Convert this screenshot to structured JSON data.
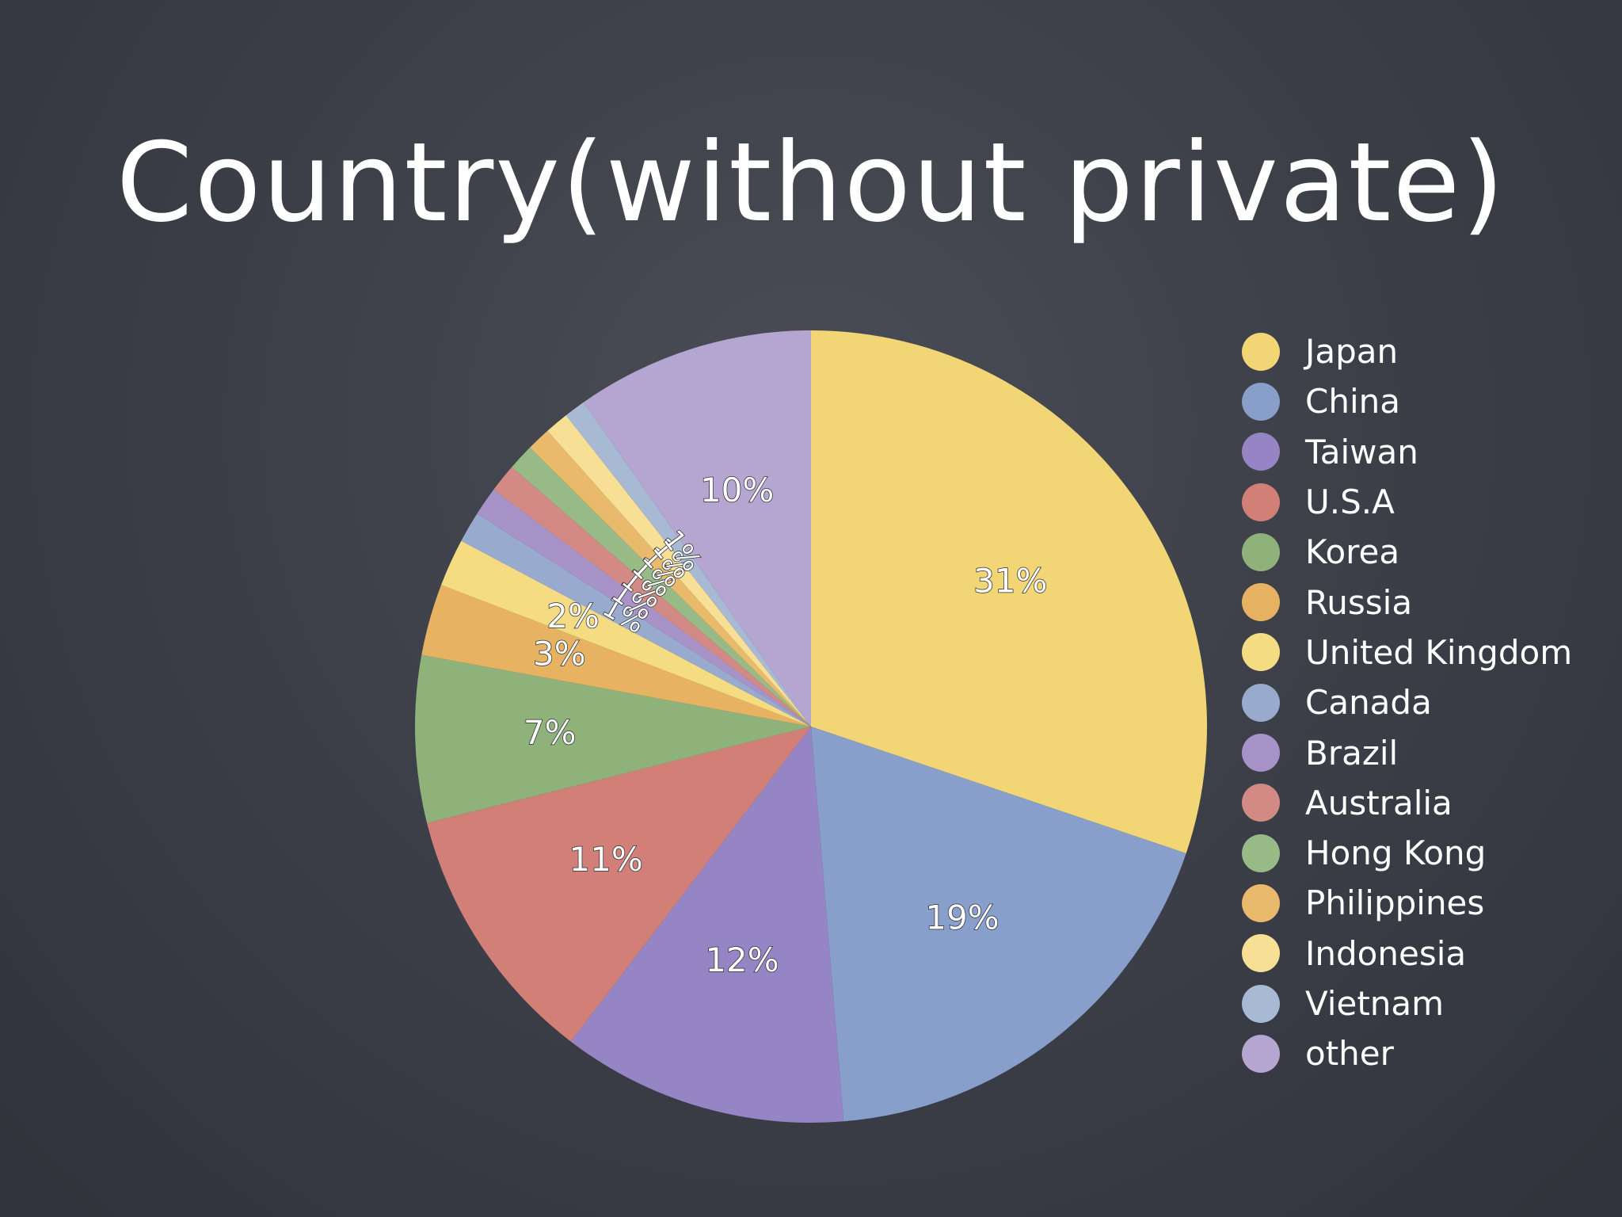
{
  "slide": {
    "title": "Country(without private)"
  },
  "chart_data": {
    "type": "pie",
    "title": "Country(without private)",
    "legend_position": "right",
    "start": "top, clockwise",
    "slices": [
      {
        "name": "Japan",
        "value": 31,
        "label": "31%",
        "color": "#f2d675"
      },
      {
        "name": "China",
        "value": 19,
        "label": "19%",
        "color": "#889fcb"
      },
      {
        "name": "Taiwan",
        "value": 12,
        "label": "12%",
        "color": "#9585c4"
      },
      {
        "name": "U.S.A",
        "value": 11,
        "label": "11%",
        "color": "#d27f78"
      },
      {
        "name": "Korea",
        "value": 7,
        "label": "7%",
        "color": "#8fb27a"
      },
      {
        "name": "Russia",
        "value": 3,
        "label": "3%",
        "color": "#e7b262"
      },
      {
        "name": "United Kingdom",
        "value": 2,
        "label": "2%",
        "color": "#f5dc82"
      },
      {
        "name": "Canada",
        "value": 1.3,
        "label": "1%",
        "color": "#98abcf"
      },
      {
        "name": "Brazil",
        "value": 1.2,
        "label": "1%",
        "color": "#a793c8"
      },
      {
        "name": "Australia",
        "value": 1.2,
        "label": "1%",
        "color": "#d38a84"
      },
      {
        "name": "Hong Kong",
        "value": 1.1,
        "label": "1%",
        "color": "#97ba86"
      },
      {
        "name": "Philippines",
        "value": 1,
        "label": "1%",
        "color": "#e9b96c"
      },
      {
        "name": "Indonesia",
        "value": 1,
        "label": "1%",
        "color": "#f7e095"
      },
      {
        "name": "Vietnam",
        "value": 0.9,
        "label": "1%",
        "color": "#a8b9d4"
      },
      {
        "name": "other",
        "value": 10,
        "label": "10%",
        "color": "#b4a6d1"
      }
    ]
  }
}
